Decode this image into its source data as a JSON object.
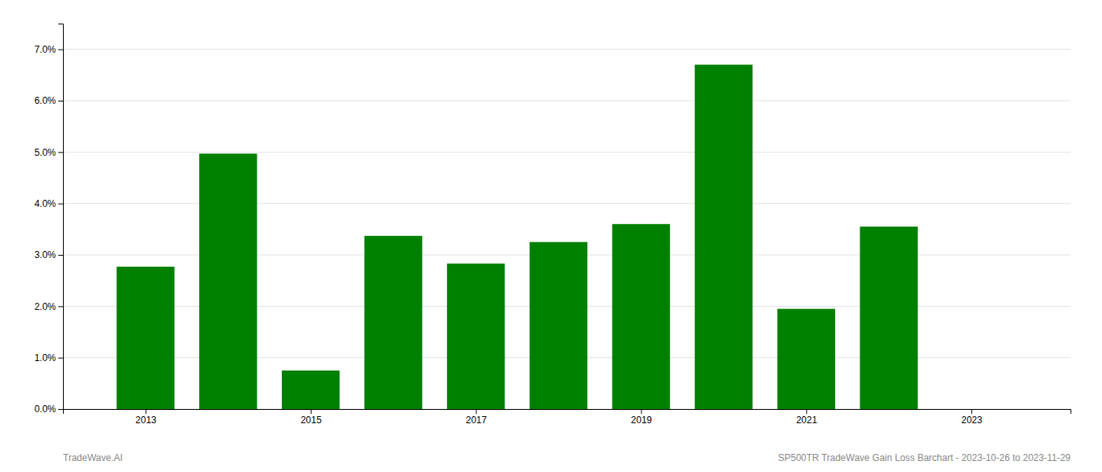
{
  "chart_data": {
    "type": "bar",
    "x": [
      2013,
      2014,
      2015,
      2016,
      2017,
      2018,
      2019,
      2020,
      2021,
      2022
    ],
    "values": [
      0.0277,
      0.0497,
      0.0075,
      0.0337,
      0.0283,
      0.0325,
      0.036,
      0.067,
      0.0195,
      0.0355
    ],
    "color": "#008000",
    "xlim": [
      2012.0,
      2024.2
    ],
    "xticks": [
      2013,
      2015,
      2017,
      2019,
      2021,
      2023
    ],
    "ylim": [
      0.0,
      0.075
    ],
    "yticks": [
      {
        "value": 0.0,
        "label": "0.0%"
      },
      {
        "value": 0.01,
        "label": "1.0%"
      },
      {
        "value": 0.02,
        "label": "2.0%"
      },
      {
        "value": 0.03,
        "label": "3.0%"
      },
      {
        "value": 0.04,
        "label": "4.0%"
      },
      {
        "value": 0.05,
        "label": "5.0%"
      },
      {
        "value": 0.06,
        "label": "6.0%"
      },
      {
        "value": 0.07,
        "label": "7.0%"
      }
    ],
    "grid": true,
    "annotations": [
      "TradeWave.AI",
      "SP500TR TradeWave Gain Loss Barchart - 2023-10-26 to 2023-11-29"
    ]
  }
}
